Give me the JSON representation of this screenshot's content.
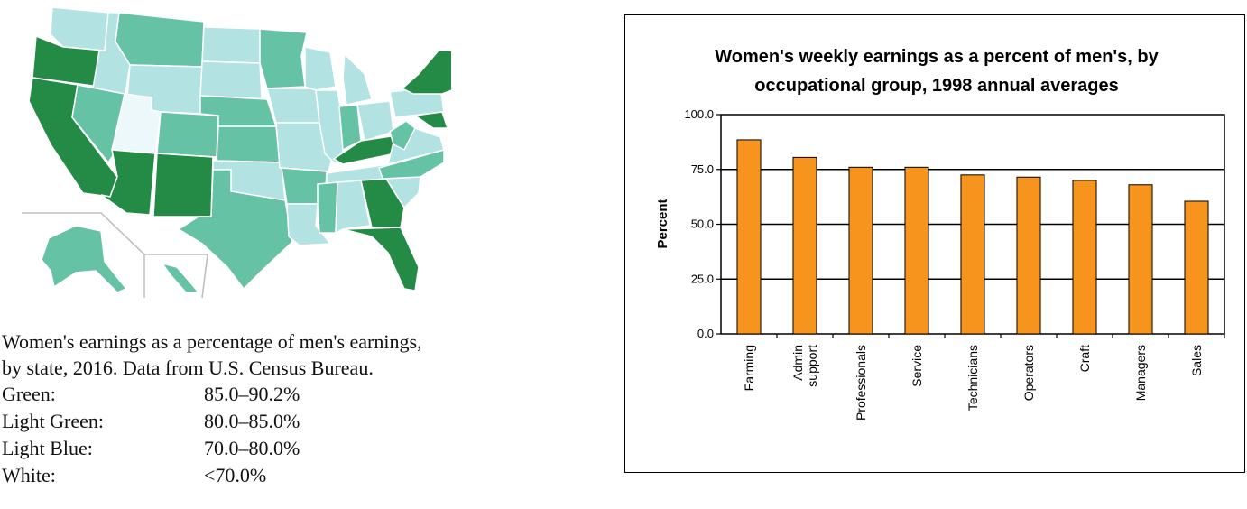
{
  "map": {
    "caption_lines": [
      "Women's earnings as a percentage of men's earnings,",
      "by state, 2016. Data from U.S. Census Bureau."
    ],
    "legend": [
      {
        "label": "Green:",
        "range": "85.0–90.2%",
        "color": "#238b45"
      },
      {
        "label": "Light Green:",
        "range": "80.0–85.0%",
        "color": "#66c2a4"
      },
      {
        "label": "Light Blue:",
        "range": "70.0–80.0%",
        "color": "#b2e2e2"
      },
      {
        "label": "White:",
        "range": "<70.0%",
        "color": "#edf8fb"
      }
    ]
  },
  "chart_data": {
    "type": "bar",
    "title_lines": [
      "Women's weekly earnings as a percent of men's, by",
      "occupational group, 1998 annual averages"
    ],
    "ylabel": "Percent",
    "xlabel": "",
    "ylim": [
      0,
      100
    ],
    "yticks": [
      "0.0",
      "25.0",
      "50.0",
      "75.0",
      "100.0"
    ],
    "yticks_values": [
      0,
      25,
      50,
      75,
      100
    ],
    "categories": [
      [
        "Farming"
      ],
      [
        "Admin",
        "support"
      ],
      [
        "Professionals"
      ],
      [
        "Service"
      ],
      [
        "Technicians"
      ],
      [
        "Operators"
      ],
      [
        "Craft"
      ],
      [
        "Managers"
      ],
      [
        "Sales"
      ]
    ],
    "values": [
      88.5,
      80.5,
      76.0,
      76.0,
      72.5,
      71.5,
      70.0,
      68.0,
      60.5
    ],
    "bar_color": "#f7941d",
    "grid": "horizontal"
  }
}
